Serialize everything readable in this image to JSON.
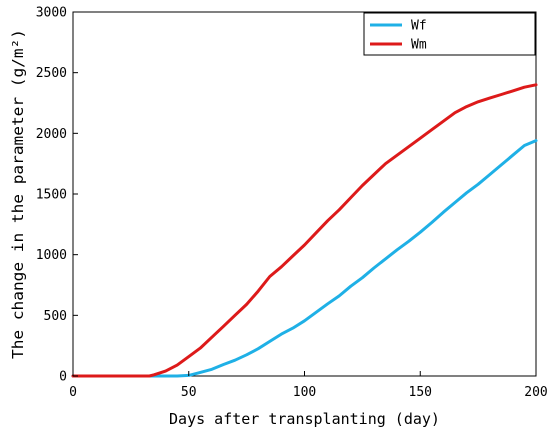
{
  "chart_data": {
    "type": "line",
    "title": "",
    "xlabel": "Days after transplanting (day)",
    "ylabel": "The change in the parameter (g/m²)",
    "xlim": [
      0,
      200
    ],
    "ylim": [
      0,
      3000
    ],
    "x_ticks": [
      0,
      50,
      100,
      150,
      200
    ],
    "y_ticks": [
      0,
      500,
      1000,
      1500,
      2000,
      2500,
      3000
    ],
    "grid": false,
    "legend_position": "top-right",
    "series": [
      {
        "name": "Wf",
        "color": "#1fb0e6",
        "x": [
          0,
          45,
          50,
          55,
          60,
          65,
          70,
          75,
          80,
          85,
          90,
          95,
          100,
          105,
          110,
          115,
          120,
          125,
          130,
          135,
          140,
          145,
          150,
          155,
          160,
          165,
          170,
          175,
          180,
          185,
          190,
          195,
          200
        ],
        "y": [
          0,
          0,
          5,
          30,
          55,
          95,
          130,
          175,
          225,
          285,
          345,
          395,
          455,
          525,
          595,
          660,
          740,
          810,
          890,
          965,
          1040,
          1110,
          1185,
          1265,
          1350,
          1430,
          1510,
          1580,
          1660,
          1740,
          1820,
          1900,
          1940
        ]
      },
      {
        "name": "Wm",
        "color": "#dd1a1a",
        "x": [
          0,
          33,
          35,
          40,
          45,
          50,
          55,
          60,
          65,
          70,
          75,
          80,
          85,
          90,
          95,
          100,
          105,
          110,
          115,
          120,
          125,
          130,
          135,
          140,
          145,
          150,
          155,
          160,
          165,
          170,
          175,
          180,
          185,
          190,
          195,
          200
        ],
        "y": [
          0,
          0,
          10,
          40,
          90,
          160,
          230,
          320,
          410,
          500,
          590,
          700,
          820,
          900,
          990,
          1080,
          1180,
          1280,
          1370,
          1470,
          1570,
          1660,
          1750,
          1820,
          1890,
          1960,
          2030,
          2100,
          2170,
          2220,
          2260,
          2290,
          2320,
          2350,
          2380,
          2400
        ]
      }
    ]
  }
}
